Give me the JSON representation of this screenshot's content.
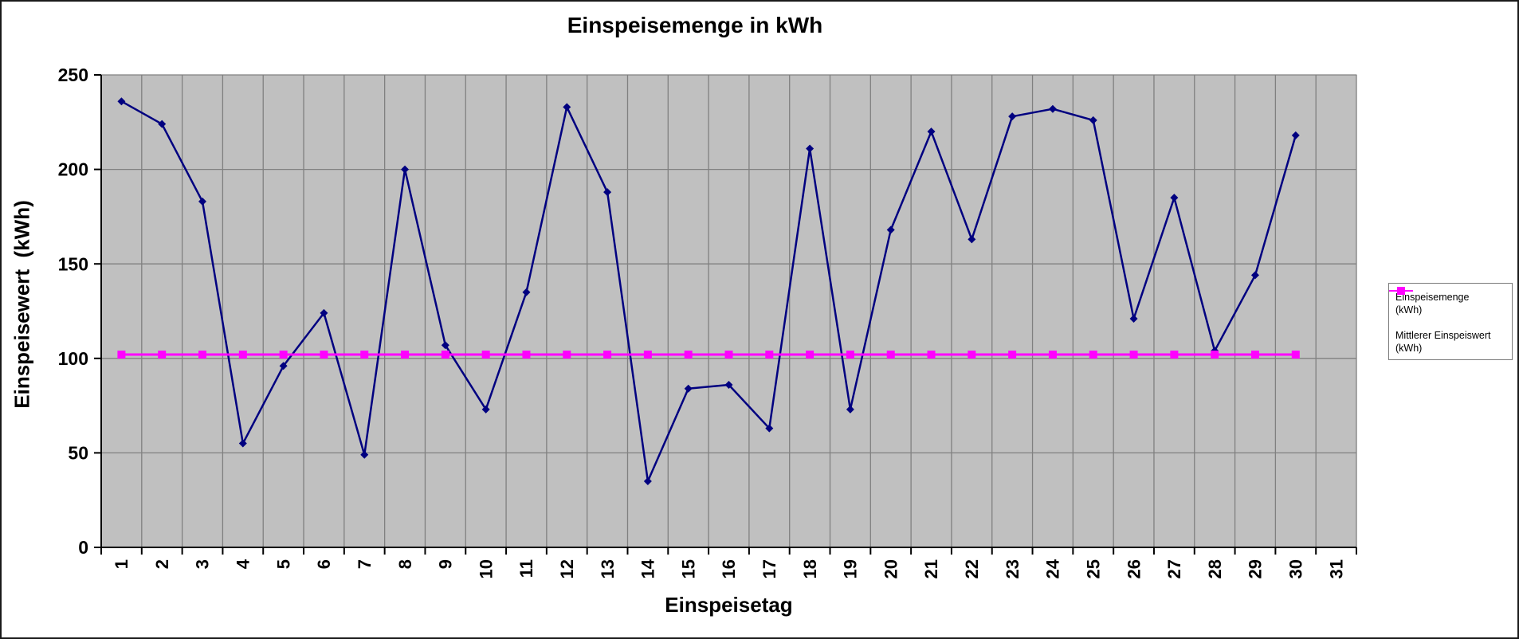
{
  "page": {
    "background": "#FFFFFF",
    "border_color": "#1A1A1A"
  },
  "chart_data": {
    "type": "line",
    "title": "Einspeisemenge in kWh",
    "xlabel": "Einspeisetag",
    "ylabel": "Einspeisewert  (kWh)",
    "categories": [
      1,
      2,
      3,
      4,
      5,
      6,
      7,
      8,
      9,
      10,
      11,
      12,
      13,
      14,
      15,
      16,
      17,
      18,
      19,
      20,
      21,
      22,
      23,
      24,
      25,
      26,
      27,
      28,
      29,
      30,
      31
    ],
    "series": [
      {
        "name": "Einspeisemenge (kWh)",
        "legend_label": "Einspeisemenge\n(kWh)",
        "color": "#000080",
        "marker": "diamond",
        "values": [
          236,
          224,
          183,
          55,
          96,
          124,
          49,
          200,
          107,
          73,
          135,
          233,
          188,
          35,
          84,
          86,
          63,
          211,
          73,
          168,
          220,
          163,
          228,
          232,
          226,
          121,
          185,
          104,
          144,
          218,
          null
        ]
      },
      {
        "name": "Mittlerer Einspeiswert (kWh)",
        "legend_label": "Mittlerer Einspeiswert\n(kWh)",
        "color": "#FF00FF",
        "marker": "square",
        "values": [
          102,
          102,
          102,
          102,
          102,
          102,
          102,
          102,
          102,
          102,
          102,
          102,
          102,
          102,
          102,
          102,
          102,
          102,
          102,
          102,
          102,
          102,
          102,
          102,
          102,
          102,
          102,
          102,
          102,
          102,
          null
        ]
      }
    ],
    "ylim": [
      0,
      250
    ],
    "yticks": [
      0,
      50,
      100,
      150,
      200,
      250
    ],
    "grid": true,
    "legend_position": "right",
    "plot_bg": "#C0C0C0",
    "gridline_color": "#808080",
    "axis_color": "#000000"
  }
}
